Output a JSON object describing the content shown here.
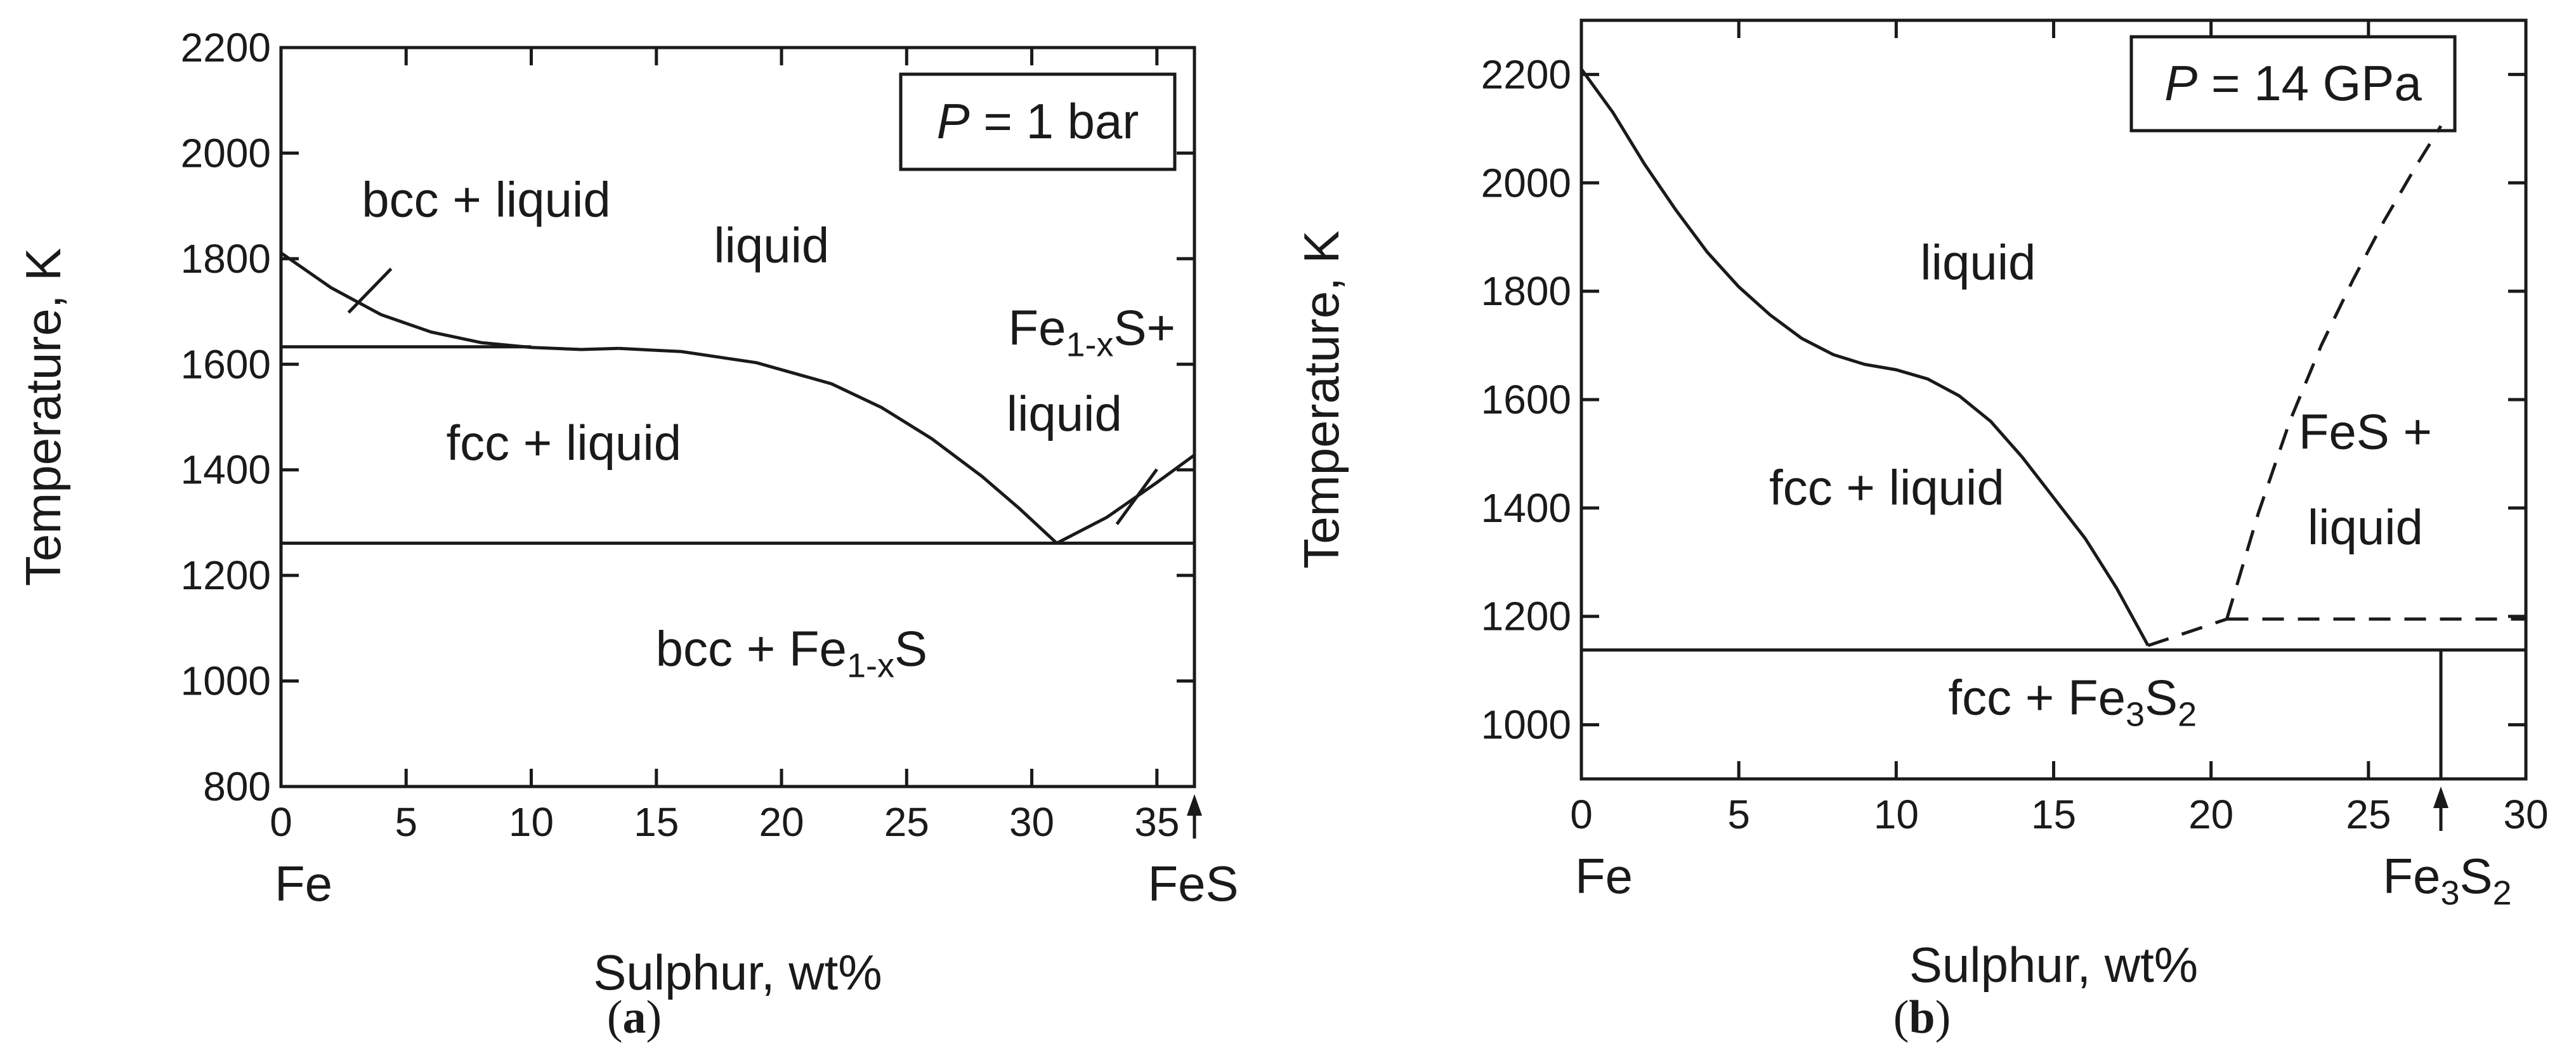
{
  "chart_data": [
    {
      "panel_label": "a",
      "type": "line",
      "title": "",
      "pressure_label": {
        "var": "P",
        "rest": " = 1 bar"
      },
      "xlabel": "Sulphur, wt%",
      "ylabel": "Temperature, K",
      "xlim": [
        0,
        36.5
      ],
      "ylim": [
        800,
        2200
      ],
      "xticks": [
        0,
        5,
        10,
        15,
        20,
        25,
        30,
        35
      ],
      "xtick_labels": [
        "0",
        "5",
        "10",
        "15",
        "20",
        "25",
        "30",
        "35"
      ],
      "yticks": [
        800,
        1000,
        1200,
        1400,
        1600,
        1800,
        2000,
        2200
      ],
      "ytick_labels": [
        "800",
        "1000",
        "1200",
        "1400",
        "1600",
        "1800",
        "2000",
        "2200"
      ],
      "end_labels": {
        "left": "Fe",
        "right": "FeS"
      },
      "series": [
        {
          "style": "solid",
          "x": [
            0,
            2,
            4,
            6,
            8,
            10,
            12,
            13.5
          ],
          "y": [
            1811,
            1745,
            1694,
            1661,
            1641,
            1632,
            1628,
            1630
          ]
        },
        {
          "style": "solid",
          "x": [
            13.5,
            16,
            19,
            22,
            24,
            26,
            28,
            29.5,
            31
          ],
          "y": [
            1630,
            1624,
            1603,
            1563,
            1518,
            1459,
            1388,
            1327,
            1261
          ]
        },
        {
          "style": "solid",
          "x": [
            31,
            33,
            35,
            36.5
          ],
          "y": [
            1261,
            1310,
            1376,
            1428
          ]
        },
        {
          "style": "solid",
          "x": [
            0,
            10
          ],
          "y": [
            1633,
            1633
          ]
        },
        {
          "style": "solid",
          "x": [
            0,
            36.5
          ],
          "y": [
            1261,
            1261
          ]
        },
        {
          "style": "solid",
          "x": [
            2.7,
            4.4
          ],
          "y": [
            1698,
            1781
          ]
        },
        {
          "style": "solid",
          "x": [
            33.4,
            35
          ],
          "y": [
            1297,
            1401
          ]
        }
      ],
      "annotations": [
        {
          "x": 36.5,
          "y": 800,
          "type": "arrow-up"
        }
      ],
      "regions": [
        {
          "main": "bcc + liquid",
          "x": 8.2,
          "y": 1880
        },
        {
          "main": "liquid",
          "x": 19.6,
          "y": 1793
        },
        {
          "main": "fcc + liquid",
          "x": 11.3,
          "y": 1419
        },
        {
          "main": "bcc + Fe",
          "sub": "1-x",
          "post": "S",
          "x": 20.4,
          "y": 1029
        },
        {
          "main": "Fe",
          "sub": "1-x",
          "post": "S+",
          "x": 32.4,
          "y": 1637
        },
        {
          "main": "liquid",
          "x": 31.3,
          "y": 1474
        }
      ]
    },
    {
      "panel_label": "b",
      "type": "line",
      "title": "",
      "pressure_label": {
        "var": "P",
        "rest": " = 14 GPa"
      },
      "xlabel": "Sulphur, wt%",
      "ylabel": "Temperature, K",
      "xlim": [
        0,
        30
      ],
      "ylim": [
        900,
        2300
      ],
      "xticks": [
        0,
        5,
        10,
        15,
        20,
        25,
        30
      ],
      "xtick_labels": [
        "0",
        "5",
        "10",
        "15",
        "20",
        "25",
        "30"
      ],
      "yticks": [
        1000,
        1200,
        1400,
        1600,
        1800,
        2000,
        2200
      ],
      "ytick_labels": [
        "1000",
        "1200",
        "1400",
        "1600",
        "1800",
        "2000",
        "2200"
      ],
      "end_labels": {
        "left": "Fe",
        "right": "Fe",
        "right_sub": "3",
        "right_mid": "S",
        "right_sub2": "2"
      },
      "series": [
        {
          "style": "solid",
          "x": [
            0,
            1,
            2,
            3,
            4,
            5,
            6,
            7,
            8,
            9,
            10,
            11,
            12,
            13,
            14,
            15,
            16,
            17,
            18
          ],
          "y": [
            2210,
            2130,
            2035,
            1950,
            1872,
            1808,
            1756,
            1713,
            1683,
            1665,
            1655,
            1638,
            1607,
            1560,
            1494,
            1419,
            1344,
            1252,
            1146
          ]
        },
        {
          "style": "dashed",
          "x": [
            18,
            20.5
          ],
          "y": [
            1146,
            1195
          ]
        },
        {
          "style": "dashed",
          "x": [
            20.5,
            30
          ],
          "y": [
            1195,
            1195
          ]
        },
        {
          "style": "dashed",
          "x": [
            20.5,
            21.5,
            22.5,
            23.5,
            24.5,
            25.5,
            26.5,
            27.3
          ],
          "y": [
            1195,
            1390,
            1560,
            1700,
            1820,
            1930,
            2030,
            2105
          ]
        },
        {
          "style": "solid",
          "x": [
            0,
            30
          ],
          "y": [
            1138,
            1138
          ]
        },
        {
          "style": "solid",
          "x": [
            27.3,
            27.3
          ],
          "y": [
            900,
            1138
          ]
        }
      ],
      "annotations": [
        {
          "x": 27.3,
          "y": 900,
          "type": "arrow-up"
        }
      ],
      "regions": [
        {
          "main": "liquid",
          "x": 12.6,
          "y": 1822
        },
        {
          "main": "fcc + liquid",
          "x": 9.7,
          "y": 1406
        },
        {
          "main": "FeS +",
          "x": 24.9,
          "y": 1509
        },
        {
          "main": "liquid",
          "x": 24.9,
          "y": 1333
        },
        {
          "main": "fcc + Fe",
          "sub": "3",
          "post": "S",
          "sub2": "2",
          "x": 15.6,
          "y": 1019
        }
      ]
    }
  ]
}
